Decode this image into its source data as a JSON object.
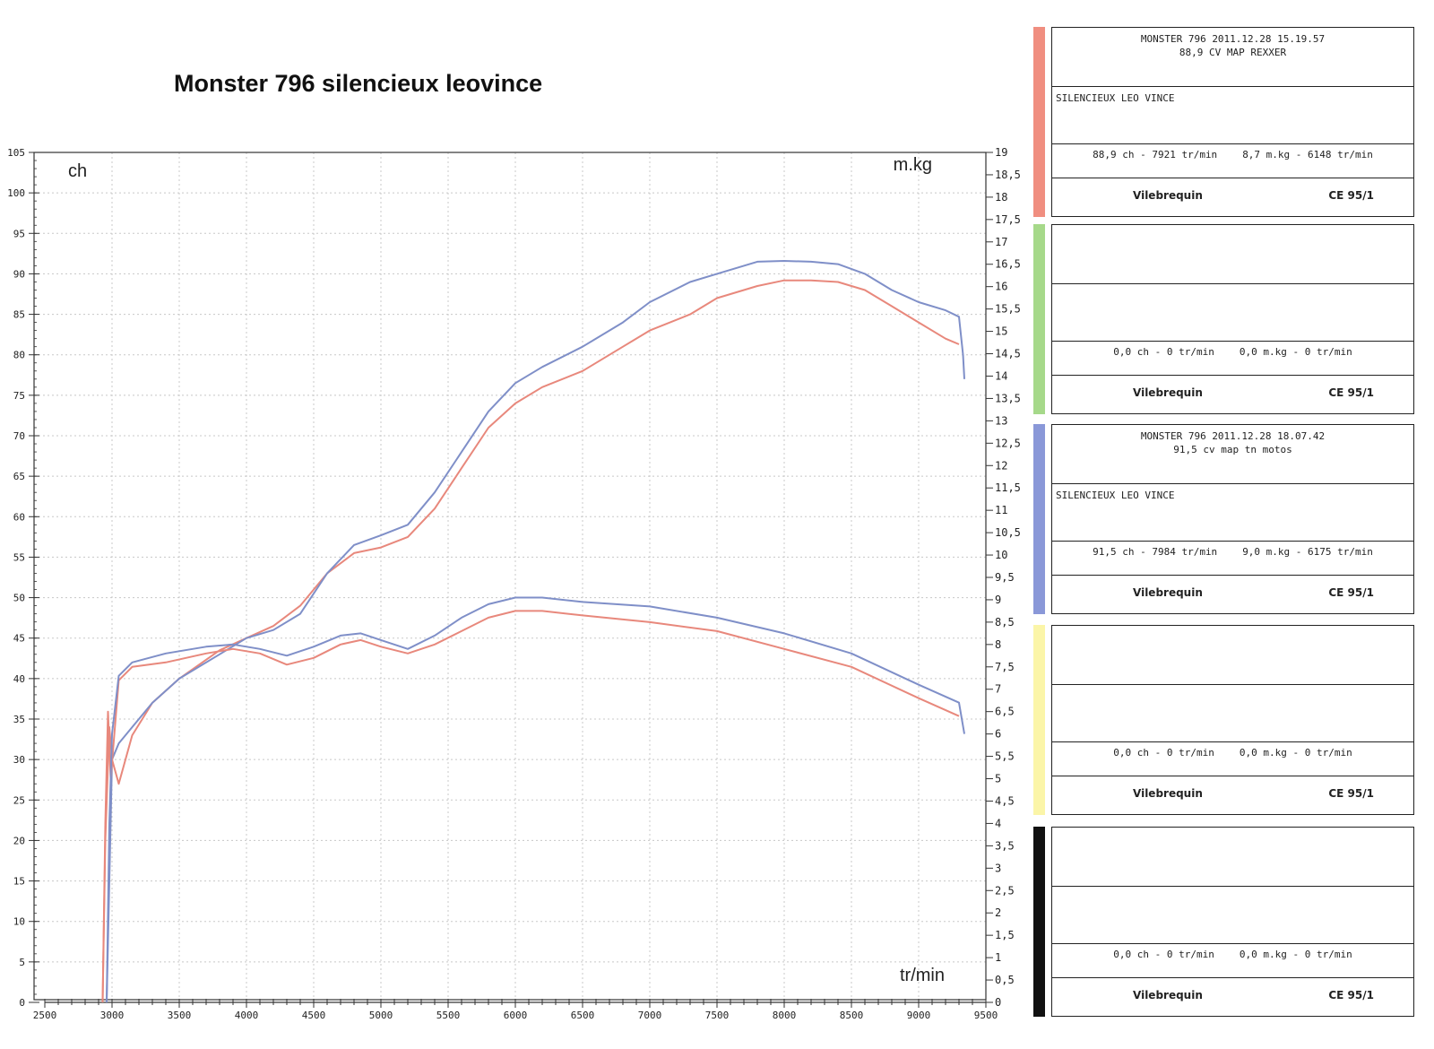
{
  "chart_data": {
    "type": "line",
    "title": "Monster 796 silencieux leovince",
    "xlabel": "tr/min",
    "ylabel_left": "ch",
    "ylabel_right": "m.kg",
    "xlim": [
      2500,
      9500
    ],
    "ylim_left": [
      0,
      105
    ],
    "ylim_right": [
      0,
      19
    ],
    "x_ticks": [
      "2500",
      "3000",
      "3500",
      "4000",
      "4500",
      "5000",
      "5500",
      "6000",
      "6500",
      "7000",
      "7500",
      "8000",
      "8500",
      "9000",
      "9500"
    ],
    "y_left_ticks": [
      "0",
      "5",
      "10",
      "15",
      "20",
      "25",
      "30",
      "35",
      "40",
      "45",
      "50",
      "55",
      "60",
      "65",
      "70",
      "75",
      "80",
      "85",
      "90",
      "95",
      "100",
      "105"
    ],
    "y_right_ticks": [
      "0",
      "0,5",
      "1",
      "1,5",
      "2",
      "2,5",
      "3",
      "3,5",
      "4",
      "4,5",
      "5",
      "5,5",
      "6",
      "6,5",
      "7",
      "7,5",
      "8",
      "8,5",
      "9",
      "9,5",
      "10",
      "10,5",
      "11",
      "11,5",
      "12",
      "12,5",
      "13",
      "13,5",
      "14",
      "14,5",
      "15",
      "15,5",
      "16",
      "16,5",
      "17",
      "17,5",
      "18",
      "18,5",
      "19"
    ],
    "grid": true,
    "series": [
      {
        "color": "#e8887c",
        "kind": "power",
        "axis": "left",
        "points": [
          [
            2930,
            0
          ],
          [
            2950,
            20
          ],
          [
            2980,
            34
          ],
          [
            3000,
            30
          ],
          [
            3050,
            27
          ],
          [
            3150,
            33
          ],
          [
            3300,
            37
          ],
          [
            3500,
            40
          ],
          [
            3800,
            43.5
          ],
          [
            4000,
            45
          ],
          [
            4200,
            46.5
          ],
          [
            4400,
            49
          ],
          [
            4600,
            53
          ],
          [
            4800,
            55.5
          ],
          [
            5000,
            56.2
          ],
          [
            5200,
            57.5
          ],
          [
            5400,
            61
          ],
          [
            5600,
            66
          ],
          [
            5800,
            71
          ],
          [
            6000,
            74
          ],
          [
            6200,
            76
          ],
          [
            6500,
            78
          ],
          [
            6800,
            81
          ],
          [
            7000,
            83
          ],
          [
            7300,
            85
          ],
          [
            7500,
            87
          ],
          [
            7800,
            88.5
          ],
          [
            8000,
            89.2
          ],
          [
            8200,
            89.2
          ],
          [
            8400,
            89
          ],
          [
            8600,
            88
          ],
          [
            8800,
            86
          ],
          [
            9000,
            84
          ],
          [
            9200,
            82
          ],
          [
            9300,
            81.3
          ]
        ]
      },
      {
        "color": "#7f8fc8",
        "kind": "power",
        "axis": "left",
        "points": [
          [
            2960,
            0
          ],
          [
            2980,
            15
          ],
          [
            3000,
            30
          ],
          [
            3050,
            32
          ],
          [
            3150,
            34
          ],
          [
            3300,
            37
          ],
          [
            3500,
            40
          ],
          [
            3800,
            43
          ],
          [
            4000,
            45
          ],
          [
            4200,
            46
          ],
          [
            4400,
            48
          ],
          [
            4600,
            53
          ],
          [
            4800,
            56.5
          ],
          [
            5000,
            57.7
          ],
          [
            5200,
            59
          ],
          [
            5400,
            63
          ],
          [
            5600,
            68
          ],
          [
            5800,
            73
          ],
          [
            6000,
            76.5
          ],
          [
            6200,
            78.5
          ],
          [
            6500,
            81
          ],
          [
            6800,
            84
          ],
          [
            7000,
            86.5
          ],
          [
            7300,
            89
          ],
          [
            7500,
            90
          ],
          [
            7800,
            91.5
          ],
          [
            8000,
            91.6
          ],
          [
            8200,
            91.5
          ],
          [
            8400,
            91.2
          ],
          [
            8600,
            90
          ],
          [
            8800,
            88
          ],
          [
            9000,
            86.5
          ],
          [
            9200,
            85.5
          ],
          [
            9300,
            84.7
          ],
          [
            9330,
            80
          ],
          [
            9340,
            77
          ]
        ]
      },
      {
        "color": "#e8887c",
        "kind": "torque",
        "axis": "right",
        "points": [
          [
            2930,
            0
          ],
          [
            2950,
            4
          ],
          [
            2970,
            6.5
          ],
          [
            2990,
            5
          ],
          [
            3050,
            7.2
          ],
          [
            3150,
            7.5
          ],
          [
            3400,
            7.6
          ],
          [
            3700,
            7.8
          ],
          [
            3900,
            7.9
          ],
          [
            4100,
            7.8
          ],
          [
            4300,
            7.55
          ],
          [
            4500,
            7.7
          ],
          [
            4700,
            8.0
          ],
          [
            4850,
            8.1
          ],
          [
            5000,
            7.95
          ],
          [
            5200,
            7.8
          ],
          [
            5400,
            8.0
          ],
          [
            5600,
            8.3
          ],
          [
            5800,
            8.6
          ],
          [
            6000,
            8.75
          ],
          [
            6200,
            8.75
          ],
          [
            6500,
            8.65
          ],
          [
            7000,
            8.5
          ],
          [
            7500,
            8.3
          ],
          [
            8000,
            7.9
          ],
          [
            8500,
            7.5
          ],
          [
            9000,
            6.8
          ],
          [
            9300,
            6.4
          ]
        ]
      },
      {
        "color": "#7f8fc8",
        "kind": "torque",
        "axis": "right",
        "points": [
          [
            2960,
            0
          ],
          [
            2980,
            4
          ],
          [
            3000,
            6.0
          ],
          [
            3050,
            7.3
          ],
          [
            3150,
            7.6
          ],
          [
            3400,
            7.8
          ],
          [
            3700,
            7.95
          ],
          [
            3900,
            8.0
          ],
          [
            4100,
            7.9
          ],
          [
            4300,
            7.75
          ],
          [
            4500,
            7.95
          ],
          [
            4700,
            8.2
          ],
          [
            4850,
            8.25
          ],
          [
            5000,
            8.1
          ],
          [
            5200,
            7.9
          ],
          [
            5400,
            8.2
          ],
          [
            5600,
            8.6
          ],
          [
            5800,
            8.9
          ],
          [
            6000,
            9.05
          ],
          [
            6200,
            9.05
          ],
          [
            6500,
            8.95
          ],
          [
            7000,
            8.85
          ],
          [
            7500,
            8.6
          ],
          [
            8000,
            8.25
          ],
          [
            8500,
            7.8
          ],
          [
            9000,
            7.1
          ],
          [
            9300,
            6.7
          ],
          [
            9340,
            6.0
          ]
        ]
      }
    ]
  },
  "panels": [
    {
      "color": "#f08e80",
      "line1": "MONSTER 796   2011.12.28 15.19.57",
      "line2": "88,9 CV  MAP REXXER",
      "note": "SILENCIEUX LEO VINCE",
      "stats_power": "88,9 ch - 7921 tr/min",
      "stats_torque": "8,7 m.kg - 6148 tr/min",
      "left": "Vilebrequin",
      "right": "CE 95/1"
    },
    {
      "color": "#a6d98a",
      "line1": "",
      "line2": "",
      "note": "",
      "stats_power": "0,0 ch - 0 tr/min",
      "stats_torque": "0,0 m.kg - 0 tr/min",
      "left": "Vilebrequin",
      "right": "CE 95/1"
    },
    {
      "color": "#8a98d8",
      "line1": "MONSTER 796   2011.12.28 18.07.42",
      "line2": "91,5 cv map tn motos",
      "note": "SILENCIEUX LEO VINCE",
      "stats_power": "91,5 ch - 7984 tr/min",
      "stats_torque": "9,0 m.kg - 6175 tr/min",
      "left": "Vilebrequin",
      "right": "CE 95/1"
    },
    {
      "color": "#fbf5a8",
      "line1": "",
      "line2": "",
      "note": "",
      "stats_power": "0,0 ch - 0 tr/min",
      "stats_torque": "0,0 m.kg - 0 tr/min",
      "left": "Vilebrequin",
      "right": "CE 95/1"
    },
    {
      "color": "#111111",
      "line1": "",
      "line2": "",
      "note": "",
      "stats_power": "0,0 ch - 0 tr/min",
      "stats_torque": "0,0 m.kg - 0 tr/min",
      "left": "Vilebrequin",
      "right": "CE 95/1"
    }
  ]
}
